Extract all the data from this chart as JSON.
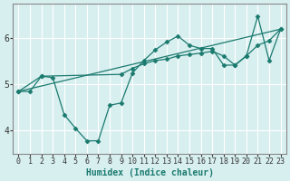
{
  "xlabel": "Humidex (Indice chaleur)",
  "background_color": "#d8eff0",
  "grid_color": "#b8dfe0",
  "line_color": "#1a7a6e",
  "xlim": [
    -0.5,
    23.5
  ],
  "ylim": [
    3.5,
    6.75
  ],
  "yticks": [
    4,
    5,
    6
  ],
  "xticks": [
    0,
    1,
    2,
    3,
    4,
    5,
    6,
    7,
    8,
    9,
    10,
    11,
    12,
    13,
    14,
    15,
    16,
    17,
    18,
    19,
    20,
    21,
    22,
    23
  ],
  "series1_x": [
    0,
    1,
    2,
    3,
    4,
    5,
    6,
    7,
    8,
    9,
    10,
    11,
    12,
    13,
    14,
    15,
    16,
    17,
    18,
    19,
    20,
    21,
    22,
    23
  ],
  "series1_y": [
    4.85,
    4.85,
    5.18,
    5.15,
    4.35,
    4.05,
    3.78,
    3.78,
    4.55,
    4.6,
    5.25,
    5.52,
    5.75,
    5.92,
    6.05,
    5.85,
    5.78,
    5.78,
    5.42,
    5.42,
    5.62,
    6.48,
    5.52,
    6.2
  ],
  "series2_x": [
    0,
    2,
    9,
    10,
    11,
    12,
    13,
    14,
    15,
    16,
    17,
    18,
    19,
    20,
    21,
    22,
    23
  ],
  "series2_y": [
    4.85,
    5.18,
    5.22,
    5.35,
    5.45,
    5.52,
    5.55,
    5.62,
    5.65,
    5.68,
    5.72,
    5.62,
    5.42,
    5.62,
    5.85,
    5.95,
    6.2
  ],
  "series3_x": [
    0,
    23
  ],
  "series3_y": [
    4.85,
    6.2
  ]
}
